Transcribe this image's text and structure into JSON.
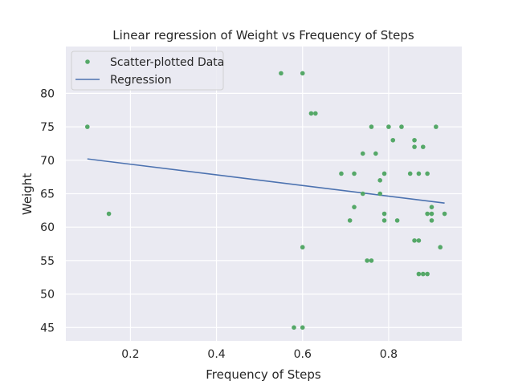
{
  "chart_data": {
    "type": "scatter",
    "title": "Linear regression of Weight vs Frequency of Steps",
    "xlabel": "Frequency of Steps",
    "ylabel": "Weight",
    "xlim": [
      0.05,
      0.97
    ],
    "ylim": [
      43,
      87
    ],
    "xticks": [
      0.2,
      0.4,
      0.6,
      0.8
    ],
    "xtick_labels": [
      "0.2",
      "0.4",
      "0.6",
      "0.8"
    ],
    "yticks": [
      45,
      50,
      55,
      60,
      65,
      70,
      75,
      80
    ],
    "ytick_labels": [
      "45",
      "50",
      "55",
      "60",
      "65",
      "70",
      "75",
      "80"
    ],
    "grid": true,
    "legend": {
      "placement": "top-left",
      "entries": [
        "Scatter-plotted Data",
        "Regression"
      ]
    },
    "series": [
      {
        "name": "Scatter-plotted Data",
        "kind": "scatter",
        "color": "#55a868",
        "points": [
          [
            0.1,
            75
          ],
          [
            0.15,
            62
          ],
          [
            0.55,
            83
          ],
          [
            0.6,
            83
          ],
          [
            0.62,
            77
          ],
          [
            0.63,
            77
          ],
          [
            0.58,
            45
          ],
          [
            0.6,
            45
          ],
          [
            0.6,
            57
          ],
          [
            0.69,
            68
          ],
          [
            0.71,
            61
          ],
          [
            0.72,
            63
          ],
          [
            0.72,
            68
          ],
          [
            0.74,
            71
          ],
          [
            0.74,
            65
          ],
          [
            0.75,
            55
          ],
          [
            0.76,
            55
          ],
          [
            0.76,
            75
          ],
          [
            0.77,
            71
          ],
          [
            0.78,
            67
          ],
          [
            0.78,
            65
          ],
          [
            0.79,
            62
          ],
          [
            0.79,
            68
          ],
          [
            0.79,
            61
          ],
          [
            0.8,
            75
          ],
          [
            0.81,
            73
          ],
          [
            0.82,
            61
          ],
          [
            0.83,
            75
          ],
          [
            0.85,
            68
          ],
          [
            0.86,
            72
          ],
          [
            0.86,
            73
          ],
          [
            0.86,
            58
          ],
          [
            0.87,
            58
          ],
          [
            0.87,
            68
          ],
          [
            0.87,
            53
          ],
          [
            0.88,
            53
          ],
          [
            0.88,
            72
          ],
          [
            0.89,
            53
          ],
          [
            0.89,
            68
          ],
          [
            0.89,
            62
          ],
          [
            0.9,
            62
          ],
          [
            0.9,
            61
          ],
          [
            0.9,
            63
          ],
          [
            0.91,
            75
          ],
          [
            0.92,
            57
          ],
          [
            0.93,
            62
          ]
        ]
      },
      {
        "name": "Regression",
        "kind": "line",
        "color": "#4c72b0",
        "x": [
          0.1,
          0.93
        ],
        "y": [
          70.2,
          63.6
        ]
      }
    ],
    "colors": {
      "plot_background": "#eaeaf2",
      "grid": "#ffffff",
      "text": "#262626"
    }
  }
}
